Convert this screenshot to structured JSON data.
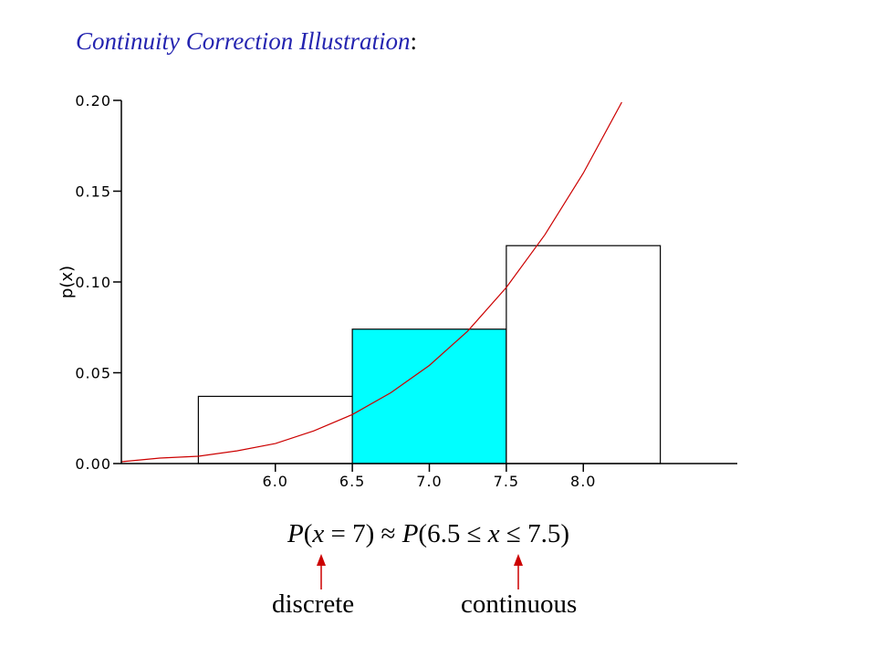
{
  "title": "Continuity Correction Illustration",
  "title_suffix": ":",
  "formula": {
    "lhs_P": "P",
    "lhs_paren_open": "(",
    "lhs_x": "x",
    "lhs_rest": " = 7)",
    "approx": " ≈ ",
    "rhs_P": "P",
    "rhs_open": "(6.5 ",
    "rel1": "≤",
    "rhs_x": " x ",
    "rel2": "≤",
    "rhs_close": " 7.5)"
  },
  "annotations": {
    "discrete": "discrete",
    "continuous": "continuous"
  },
  "colors": {
    "highlight_fill": "#00ffff",
    "curve": "#cc0000",
    "arrow": "#cc0000",
    "title": "#2424b0"
  },
  "chart_data": {
    "type": "bar",
    "title": "",
    "xlabel": "",
    "ylabel": "p(x)",
    "xlim": [
      5.0,
      9.0
    ],
    "ylim": [
      0.0,
      0.2
    ],
    "x_ticks": [
      "6.0",
      "6.5",
      "7.0",
      "7.5",
      "8.0"
    ],
    "y_ticks": [
      "0.00",
      "0.05",
      "0.10",
      "0.15",
      "0.20"
    ],
    "bars": [
      {
        "x_start": 5.5,
        "x_end": 6.5,
        "value": 0.037,
        "highlighted": false
      },
      {
        "x_start": 6.5,
        "x_end": 7.5,
        "value": 0.074,
        "highlighted": true
      },
      {
        "x_start": 7.5,
        "x_end": 8.5,
        "value": 0.12,
        "highlighted": false
      }
    ],
    "curve": {
      "type": "line",
      "x": [
        5.0,
        5.25,
        5.5,
        5.75,
        6.0,
        6.25,
        6.5,
        6.75,
        7.0,
        7.25,
        7.5,
        7.75,
        8.0,
        8.25
      ],
      "y": [
        0.001,
        0.003,
        0.004,
        0.007,
        0.011,
        0.018,
        0.027,
        0.039,
        0.054,
        0.073,
        0.097,
        0.126,
        0.16,
        0.199
      ]
    },
    "grid": false,
    "legend": "none"
  }
}
